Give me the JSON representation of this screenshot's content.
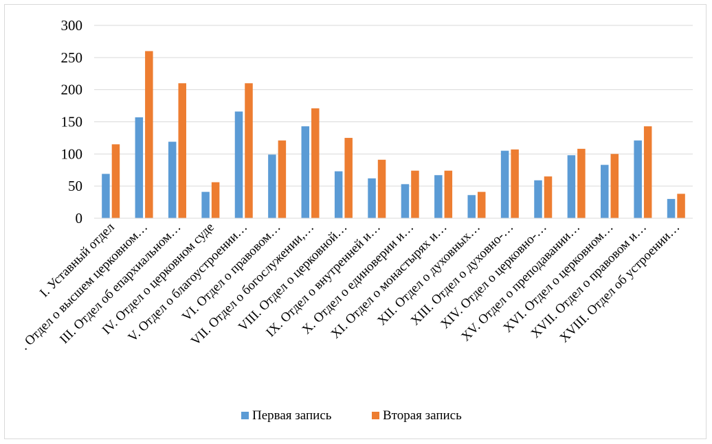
{
  "chart_data": {
    "type": "bar",
    "title": "",
    "xlabel": "",
    "ylabel": "",
    "ylim": [
      0,
      300
    ],
    "yticks": [
      0,
      50,
      100,
      150,
      200,
      250,
      300
    ],
    "grid": true,
    "legend_position": "bottom",
    "categories": [
      "I. Уставный отдел",
      ". Отдел о высшем церковном…",
      "III. Отдел об епархиальном…",
      "IV. Отдел о церковном суде",
      "V. Отдел о благоустроении…",
      "VI. Отдел о правовом…",
      "VII. Отдел о богослужении,…",
      "VIII. Отдел о церковной…",
      "IX. Отдел о внутренней и…",
      "X. Отдел о единоверии и…",
      "XI. Отдел о монастырях и…",
      "XII. Отдел о духовных…",
      "XIII. Отдел о духовно-…",
      "XIV. Отдел о церковно-…",
      "XV. Отдел о преподавании…",
      "XVI. Отдел о церковном…",
      "XVII. Отдел о правовом и…",
      "XVIII. Отдел об устроении…"
    ],
    "series": [
      {
        "name": "Первая запись",
        "color": "#5b9bd5",
        "values": [
          69,
          157,
          119,
          41,
          166,
          99,
          143,
          73,
          62,
          53,
          67,
          36,
          105,
          59,
          98,
          83,
          121,
          30
        ]
      },
      {
        "name": "Вторая запись",
        "color": "#ed7d31",
        "values": [
          115,
          260,
          210,
          56,
          210,
          121,
          171,
          125,
          91,
          74,
          74,
          41,
          107,
          65,
          108,
          100,
          143,
          38
        ]
      }
    ]
  }
}
